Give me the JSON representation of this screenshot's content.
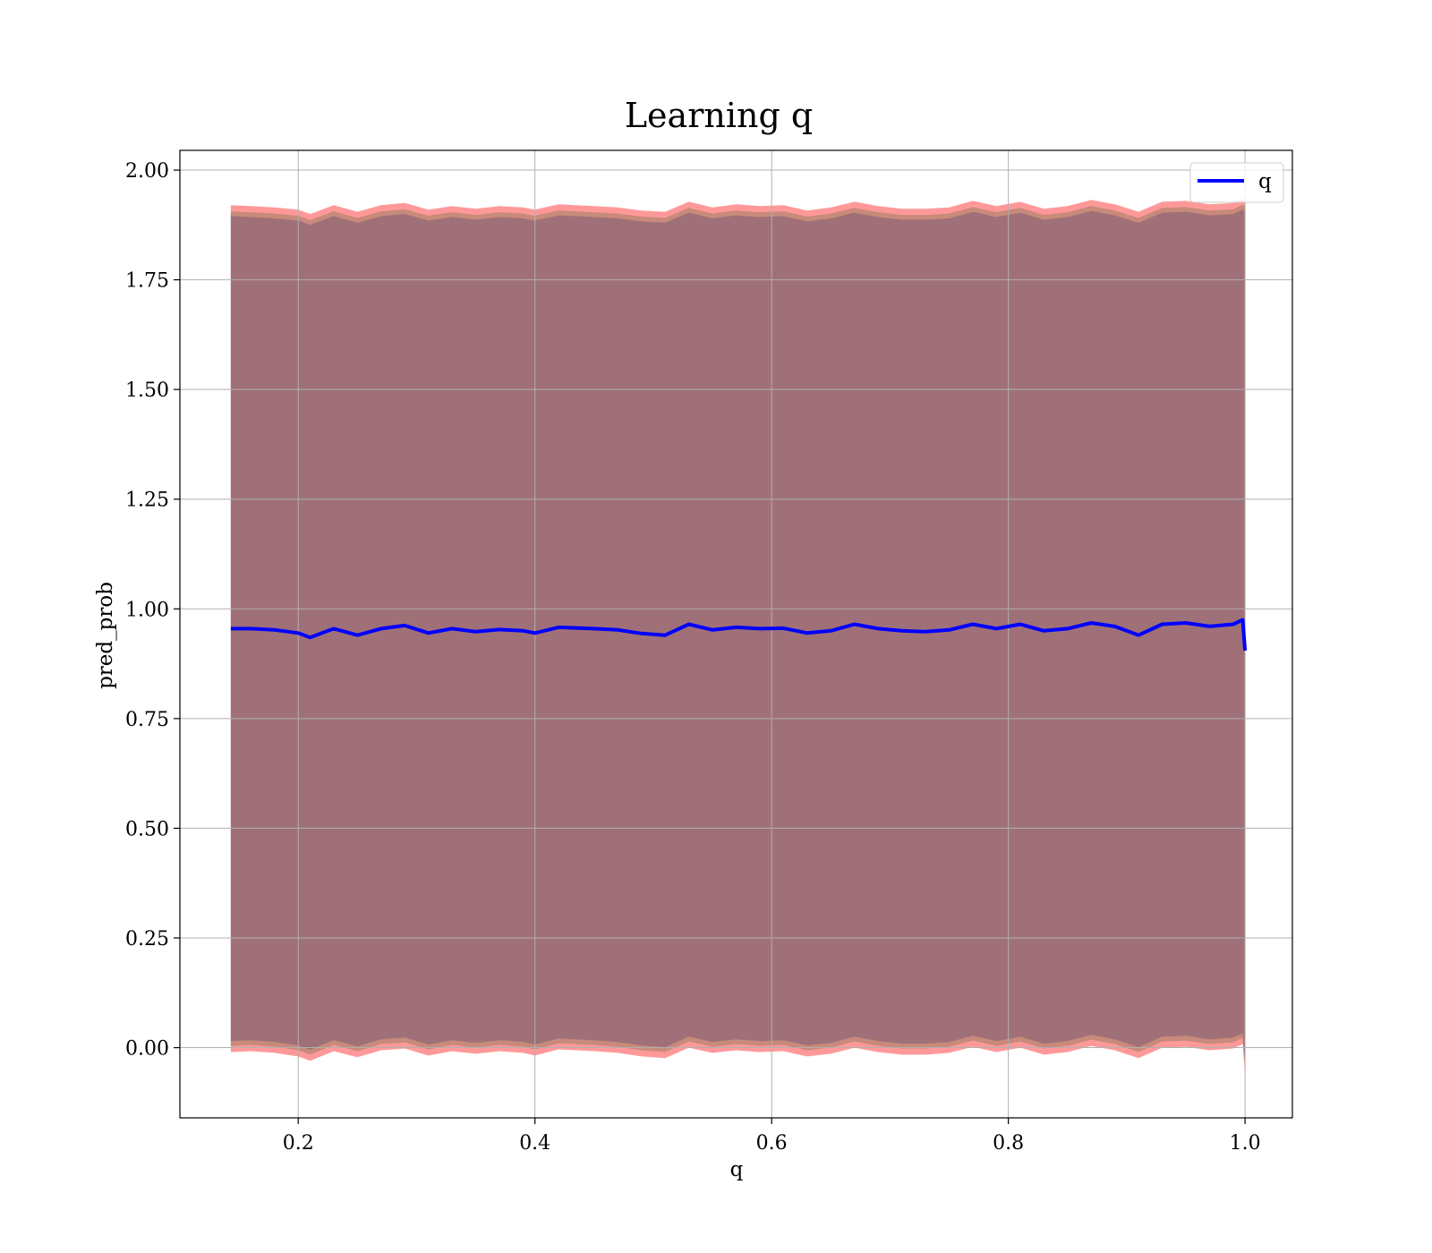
{
  "chart_data": {
    "type": "area",
    "title": "Learning q",
    "xlabel": "q",
    "ylabel": "pred_prob",
    "xlim": [
      0.1,
      1.04
    ],
    "ylim": [
      -0.16,
      2.045
    ],
    "xticks": [
      0.2,
      0.4,
      0.6,
      0.8,
      1.0
    ],
    "xtick_labels": [
      "0.2",
      "0.4",
      "0.6",
      "0.8",
      "1.0"
    ],
    "yticks": [
      0.0,
      0.25,
      0.5,
      0.75,
      1.0,
      1.25,
      1.5,
      1.75,
      2.0
    ],
    "ytick_labels": [
      "0.00",
      "0.25",
      "0.50",
      "0.75",
      "1.00",
      "1.25",
      "1.50",
      "1.75",
      "2.00"
    ],
    "grid": true,
    "legend_position": "top-right",
    "series": [
      {
        "name": "q",
        "color": "#0000ff",
        "x": [
          0.143,
          0.16,
          0.18,
          0.2,
          0.21,
          0.23,
          0.25,
          0.27,
          0.29,
          0.31,
          0.33,
          0.35,
          0.37,
          0.39,
          0.4,
          0.42,
          0.45,
          0.47,
          0.49,
          0.51,
          0.53,
          0.55,
          0.57,
          0.59,
          0.61,
          0.63,
          0.65,
          0.67,
          0.69,
          0.71,
          0.73,
          0.75,
          0.77,
          0.79,
          0.81,
          0.83,
          0.85,
          0.87,
          0.89,
          0.91,
          0.93,
          0.95,
          0.97,
          0.99,
          0.998,
          1.0
        ],
        "y": [
          0.955,
          0.955,
          0.952,
          0.945,
          0.935,
          0.955,
          0.94,
          0.955,
          0.962,
          0.945,
          0.955,
          0.948,
          0.953,
          0.95,
          0.945,
          0.958,
          0.955,
          0.952,
          0.944,
          0.94,
          0.965,
          0.952,
          0.958,
          0.955,
          0.956,
          0.945,
          0.95,
          0.965,
          0.955,
          0.95,
          0.948,
          0.952,
          0.965,
          0.955,
          0.965,
          0.95,
          0.955,
          0.968,
          0.96,
          0.94,
          0.965,
          0.968,
          0.96,
          0.965,
          0.975,
          0.905
        ]
      }
    ],
    "bands": [
      {
        "color": "#ff9999",
        "upper": [
          1.92,
          1.918,
          1.915,
          1.91,
          1.9,
          1.92,
          1.905,
          1.92,
          1.925,
          1.91,
          1.918,
          1.912,
          1.918,
          1.915,
          1.91,
          1.922,
          1.918,
          1.915,
          1.908,
          1.905,
          1.928,
          1.915,
          1.922,
          1.918,
          1.92,
          1.908,
          1.915,
          1.928,
          1.918,
          1.912,
          1.912,
          1.915,
          1.93,
          1.918,
          1.928,
          1.912,
          1.918,
          1.932,
          1.922,
          1.905,
          1.928,
          1.93,
          1.922,
          1.925,
          1.935,
          1.93
        ],
        "lower": [
          -0.01,
          -0.008,
          -0.012,
          -0.02,
          -0.03,
          -0.008,
          -0.022,
          -0.006,
          -0.002,
          -0.018,
          -0.008,
          -0.014,
          -0.008,
          -0.012,
          -0.018,
          -0.004,
          -0.008,
          -0.012,
          -0.02,
          -0.024,
          0.0,
          -0.012,
          -0.006,
          -0.01,
          -0.008,
          -0.02,
          -0.014,
          0.0,
          -0.01,
          -0.016,
          -0.016,
          -0.012,
          0.002,
          -0.01,
          0.0,
          -0.016,
          -0.01,
          0.004,
          -0.006,
          -0.024,
          0.0,
          0.002,
          -0.006,
          -0.002,
          0.008,
          -0.065
        ]
      },
      {
        "color": "#c88a7a",
        "upper": [
          1.906,
          1.904,
          1.901,
          1.896,
          1.886,
          1.906,
          1.891,
          1.906,
          1.911,
          1.896,
          1.904,
          1.898,
          1.904,
          1.901,
          1.896,
          1.908,
          1.904,
          1.901,
          1.894,
          1.891,
          1.914,
          1.901,
          1.908,
          1.904,
          1.906,
          1.894,
          1.901,
          1.914,
          1.904,
          1.898,
          1.898,
          1.901,
          1.916,
          1.904,
          1.914,
          1.898,
          1.904,
          1.918,
          1.908,
          1.891,
          1.914,
          1.916,
          1.908,
          1.911,
          1.921,
          1.916
        ],
        "lower": [
          0.004,
          0.006,
          0.002,
          -0.006,
          -0.016,
          0.006,
          -0.008,
          0.008,
          0.012,
          -0.004,
          0.006,
          0.0,
          0.006,
          0.002,
          -0.004,
          0.01,
          0.006,
          0.002,
          -0.006,
          -0.01,
          0.014,
          0.002,
          0.008,
          0.004,
          0.006,
          -0.006,
          0.0,
          0.014,
          0.004,
          -0.002,
          -0.002,
          0.002,
          0.016,
          0.004,
          0.014,
          -0.002,
          0.004,
          0.018,
          0.008,
          -0.01,
          0.014,
          0.016,
          0.008,
          0.012,
          0.022,
          -0.05
        ]
      },
      {
        "color": "#a07078",
        "upper": [
          1.895,
          1.893,
          1.89,
          1.885,
          1.875,
          1.895,
          1.88,
          1.895,
          1.9,
          1.885,
          1.893,
          1.887,
          1.893,
          1.89,
          1.885,
          1.897,
          1.893,
          1.89,
          1.883,
          1.88,
          1.903,
          1.89,
          1.897,
          1.893,
          1.895,
          1.883,
          1.89,
          1.903,
          1.893,
          1.887,
          1.887,
          1.89,
          1.905,
          1.893,
          1.903,
          1.887,
          1.893,
          1.907,
          1.897,
          1.88,
          1.903,
          1.905,
          1.897,
          1.9,
          1.91,
          1.905
        ],
        "lower": [
          0.015,
          0.017,
          0.013,
          0.005,
          -0.005,
          0.017,
          0.003,
          0.019,
          0.023,
          0.007,
          0.017,
          0.011,
          0.017,
          0.013,
          0.007,
          0.021,
          0.017,
          0.013,
          0.005,
          0.001,
          0.025,
          0.013,
          0.019,
          0.015,
          0.017,
          0.005,
          0.011,
          0.025,
          0.015,
          0.009,
          0.009,
          0.013,
          0.027,
          0.015,
          0.025,
          0.009,
          0.015,
          0.029,
          0.019,
          0.001,
          0.025,
          0.027,
          0.019,
          0.023,
          0.033,
          -0.04
        ]
      }
    ]
  }
}
